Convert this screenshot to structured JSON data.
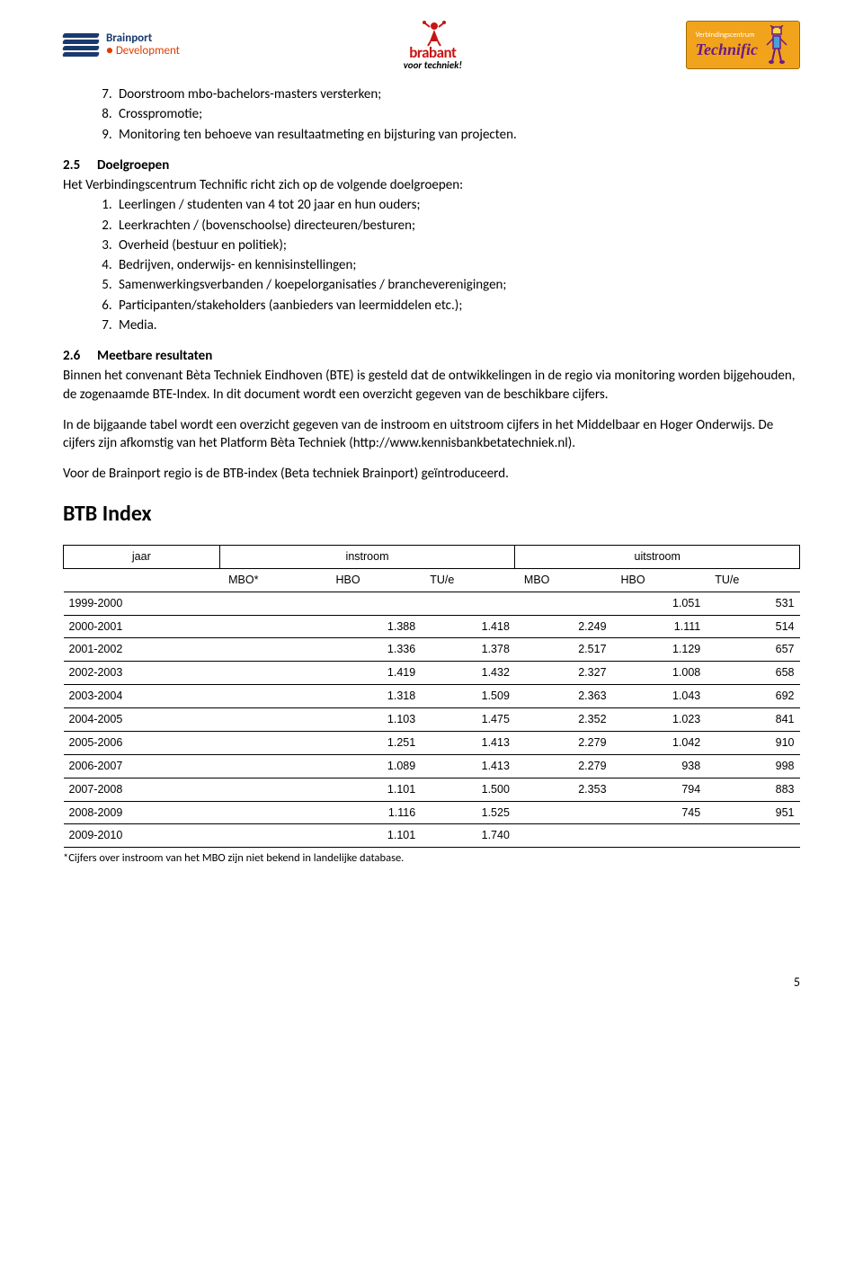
{
  "logos": {
    "brainport1": "Brainport",
    "brainport2": "Development",
    "brabant1": "brabant",
    "brabant2": "voor techniek!",
    "technific_sub": "Verbindingscentrum",
    "technific": "Technific"
  },
  "list1": {
    "start": 7,
    "items": [
      "Doorstroom mbo-bachelors-masters versterken;",
      "Crosspromotie;",
      "Monitoring ten behoeve van resultaatmeting en bijsturing van projecten."
    ]
  },
  "sec25": {
    "num": "2.5",
    "title": "Doelgroepen",
    "intro": "Het Verbindingscentrum Technific richt zich op de volgende doelgroepen:",
    "items": [
      "Leerlingen / studenten van 4 tot 20 jaar en hun ouders;",
      "Leerkrachten / (bovenschoolse) directeuren/besturen;",
      "Overheid (bestuur en politiek);",
      "Bedrijven, onderwijs- en kennisinstellingen;",
      "Samenwerkingsverbanden / koepelorganisaties / brancheverenigingen;",
      "Participanten/stakeholders (aanbieders van leermiddelen etc.);",
      "Media."
    ]
  },
  "sec26": {
    "num": "2.6",
    "title": "Meetbare resultaten",
    "p1": "Binnen het convenant Bèta Techniek Eindhoven (BTE) is gesteld dat de ontwikkelingen in de regio via monitoring worden bijgehouden, de zogenaamde BTE-Index. In dit document wordt een overzicht gegeven van de beschikbare cijfers.",
    "p2": "In de bijgaande tabel wordt een overzicht gegeven van de instroom en uitstroom cijfers in het Middelbaar en Hoger Onderwijs. De cijfers zijn afkomstig van het Platform Bèta Techniek (http://www.kennisbankbetatechniek.nl).",
    "p3": "Voor de Brainport regio is de BTB-index (Beta techniek Brainport) geïntroduceerd."
  },
  "btb_heading": "BTB Index",
  "table": {
    "head": {
      "jaar": "jaar",
      "instroom": "instroom",
      "uitstroom": "uitstroom",
      "cols": [
        "MBO*",
        "HBO",
        "TU/e",
        "MBO",
        "HBO",
        "TU/e"
      ]
    },
    "rows": [
      {
        "year": "1999-2000",
        "v": [
          "",
          "",
          "",
          "",
          "1.051",
          "531"
        ]
      },
      {
        "year": "2000-2001",
        "v": [
          "",
          "1.388",
          "1.418",
          "2.249",
          "1.111",
          "514"
        ]
      },
      {
        "year": "2001-2002",
        "v": [
          "",
          "1.336",
          "1.378",
          "2.517",
          "1.129",
          "657"
        ]
      },
      {
        "year": "2002-2003",
        "v": [
          "",
          "1.419",
          "1.432",
          "2.327",
          "1.008",
          "658"
        ]
      },
      {
        "year": "2003-2004",
        "v": [
          "",
          "1.318",
          "1.509",
          "2.363",
          "1.043",
          "692"
        ]
      },
      {
        "year": "2004-2005",
        "v": [
          "",
          "1.103",
          "1.475",
          "2.352",
          "1.023",
          "841"
        ]
      },
      {
        "year": "2005-2006",
        "v": [
          "",
          "1.251",
          "1.413",
          "2.279",
          "1.042",
          "910"
        ]
      },
      {
        "year": "2006-2007",
        "v": [
          "",
          "1.089",
          "1.413",
          "2.279",
          "938",
          "998"
        ]
      },
      {
        "year": "2007-2008",
        "v": [
          "",
          "1.101",
          "1.500",
          "2.353",
          "794",
          "883"
        ]
      },
      {
        "year": "2008-2009",
        "v": [
          "",
          "1.116",
          "1.525",
          "",
          "745",
          "951"
        ]
      },
      {
        "year": "2009-2010",
        "v": [
          "",
          "1.101",
          "1.740",
          "",
          "",
          ""
        ]
      }
    ]
  },
  "footnote": "*Cijfers over instroom van het MBO zijn niet bekend in landelijke database.",
  "page_number": "5"
}
